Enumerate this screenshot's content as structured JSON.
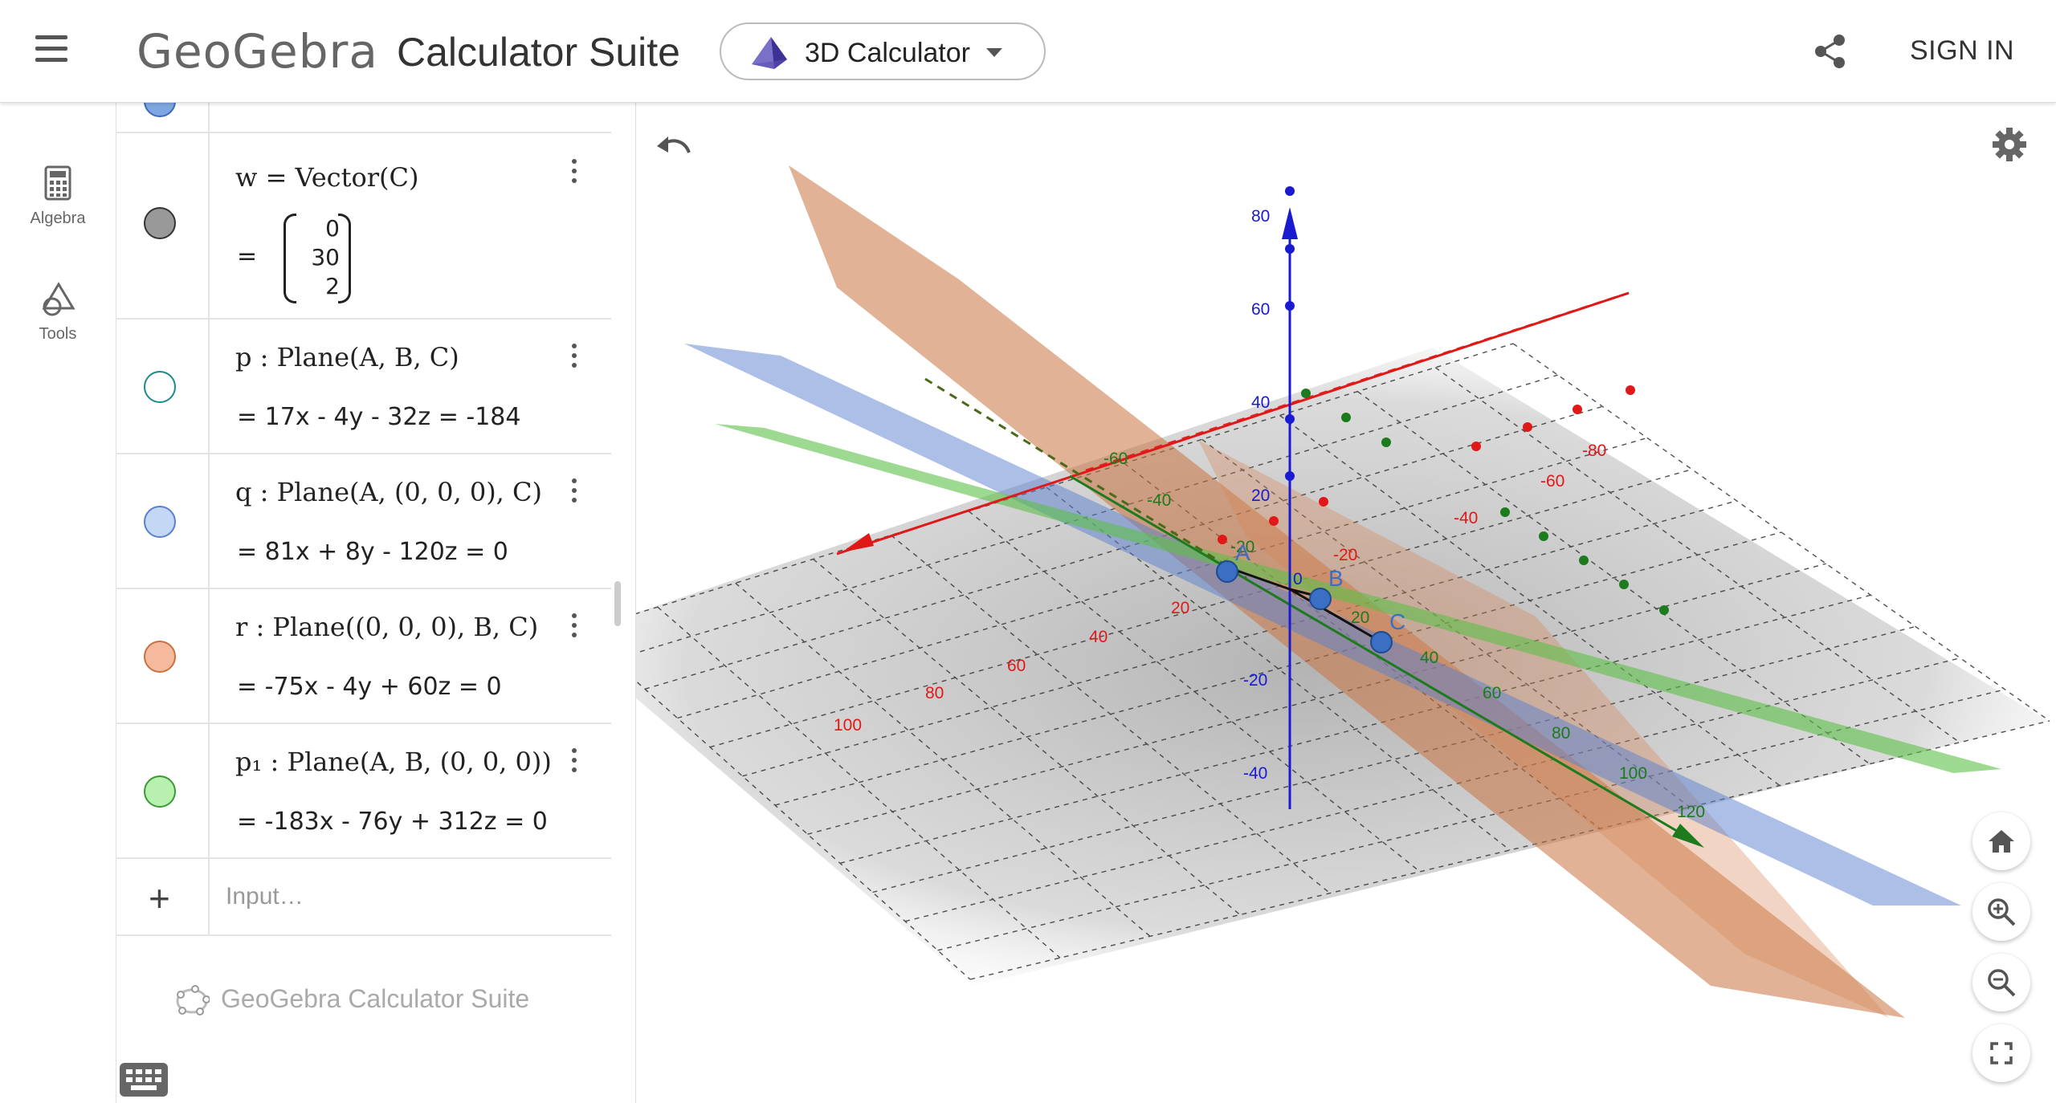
{
  "header": {
    "logo": "GeoGebra",
    "title": "Calculator Suite",
    "app_picker_label": "3D Calculator",
    "sign_in": "SIGN IN"
  },
  "rail": {
    "algebra": "Algebra",
    "tools": "Tools"
  },
  "algebra": {
    "rows": [
      {
        "def": "w  =  Vector(C)",
        "matrix": [
          "0",
          "30",
          "2"
        ],
        "marble_color": "#999999"
      },
      {
        "def": "p : Plane(A, B, C)",
        "value": "=  17x - 4y - 32z = -184",
        "marble_color": "#ffffff"
      },
      {
        "def": "q : Plane(A, (0, 0, 0), C)",
        "value": "=  81x + 8y - 120z = 0",
        "marble_color": "#c4d8f6"
      },
      {
        "def": "r : Plane((0, 0, 0), B, C)",
        "value": "=  -75x - 4y + 60z = 0",
        "marble_color": "#f5b99e"
      },
      {
        "def": "p₁ : Plane(A, B, (0, 0, 0))",
        "value": "=  -183x - 76y + 312z = 0",
        "marble_color": "#b8f0b0"
      }
    ],
    "input_placeholder": "Input…",
    "footer": "GeoGebra Calculator Suite",
    "eq_sign": "="
  },
  "graphics": {
    "x_ticks": [
      "-80",
      "-60",
      "-40",
      "-20",
      "20",
      "40",
      "60",
      "80",
      "100"
    ],
    "y_ticks": [
      "-60",
      "-40",
      "-20",
      "20",
      "40",
      "60",
      "80",
      "100",
      "120"
    ],
    "z_ticks": [
      "80",
      "60",
      "40",
      "20",
      "-20",
      "-40"
    ],
    "origin": "0",
    "points": [
      "A",
      "B",
      "C"
    ],
    "colors": {
      "x_axis": "#e01818",
      "y_axis": "#1d7a1d",
      "z_axis": "#1a1ad0",
      "plane_p": "#c8723e",
      "plane_q": "#5a7fcf",
      "plane_p1": "#5ec04a"
    }
  }
}
